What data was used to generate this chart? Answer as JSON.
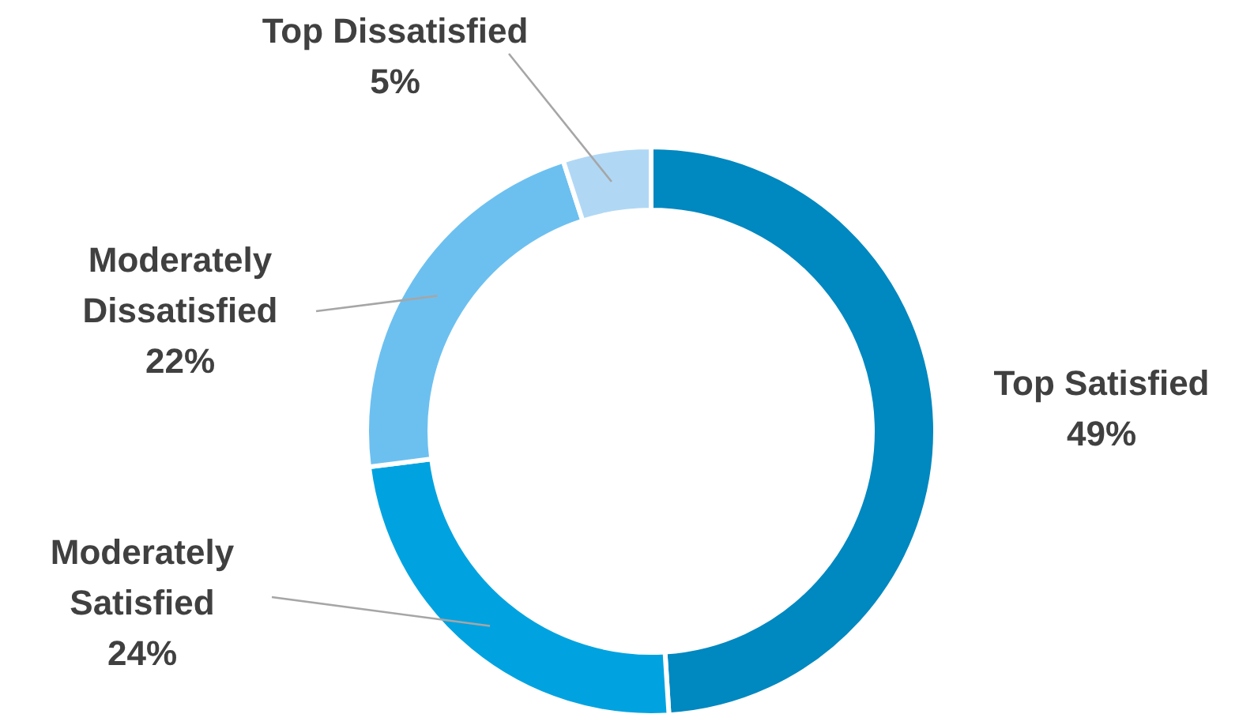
{
  "chart_data": {
    "type": "donut",
    "categories": [
      "Top Satisfied",
      "Moderately Satisfied",
      "Moderately Dissatisfied",
      "Top Dissatisfied"
    ],
    "values": [
      49,
      24,
      22,
      5
    ],
    "colors": [
      "#0088c0",
      "#00a3e0",
      "#6cc0f0",
      "#b0d8f5"
    ],
    "value_labels": [
      "49%",
      "24%",
      "22%",
      "5%"
    ]
  }
}
